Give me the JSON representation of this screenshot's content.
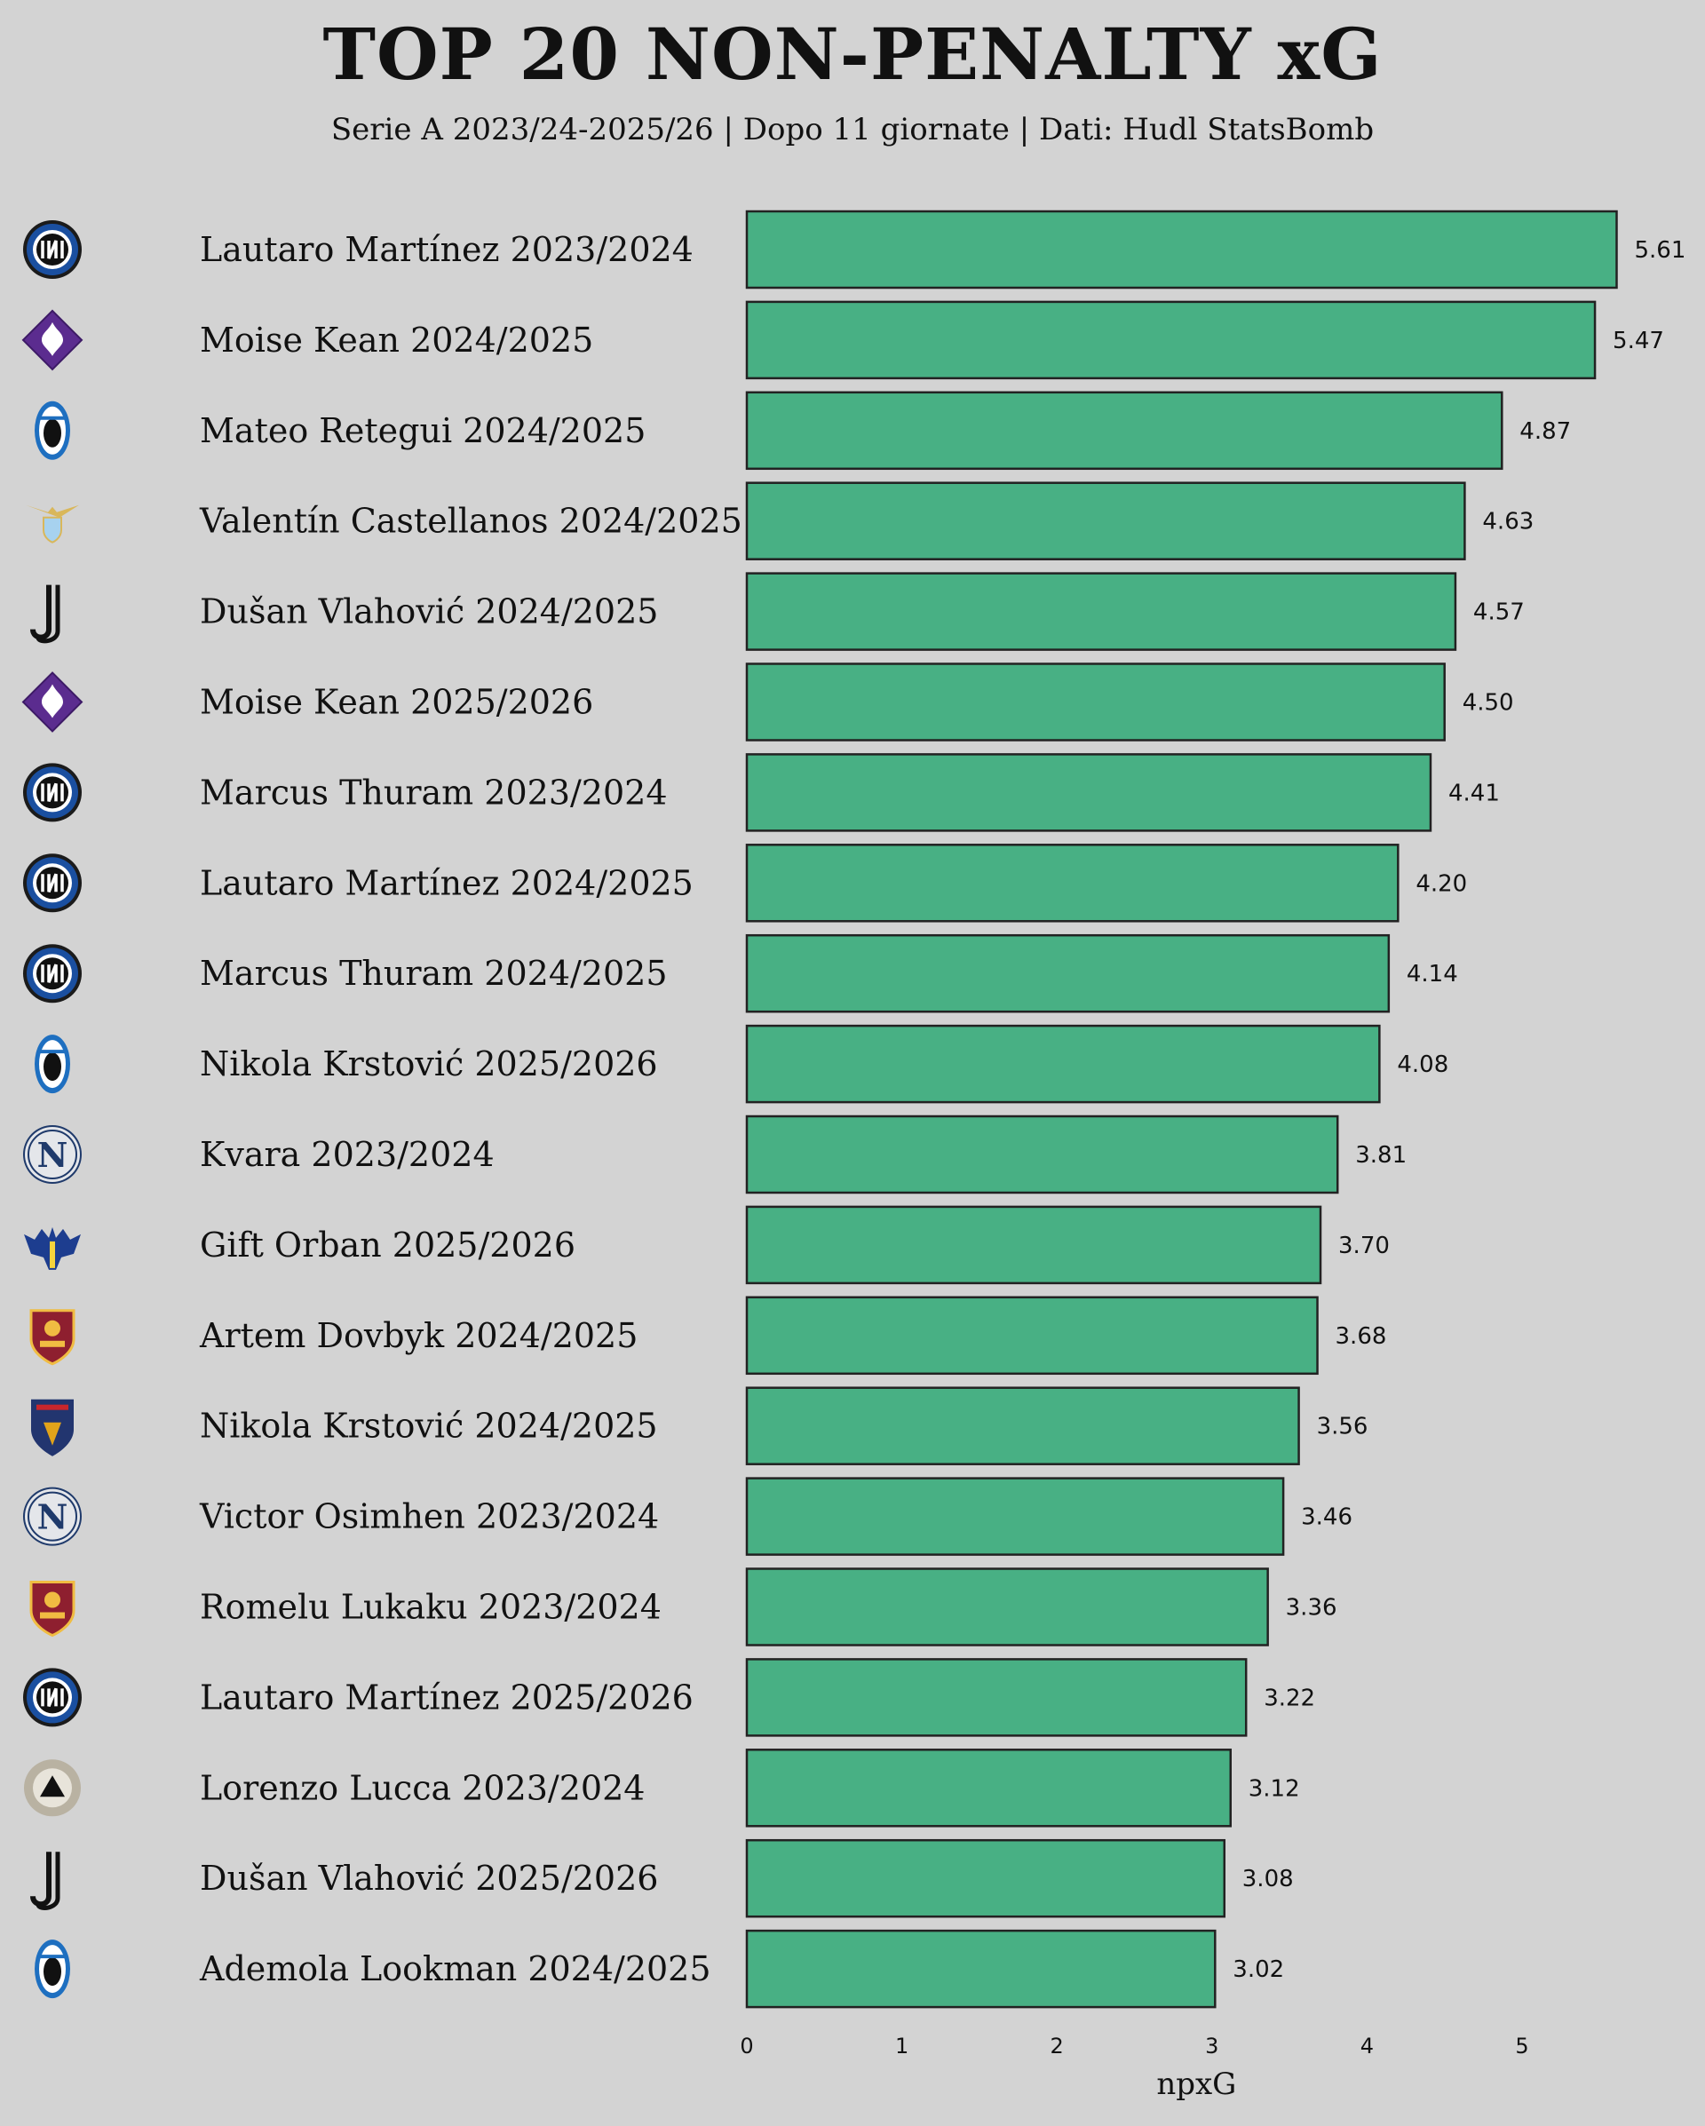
{
  "chart_data": {
    "type": "bar",
    "orientation": "horizontal",
    "title": "TOP 20 NON-PENALTY xG",
    "subtitle": "Serie A 2023/24-2025/26 | Dopo 11 giornate | Dati: Hudl StatsBomb",
    "xlabel": "npxG",
    "ylabel": "",
    "xlim": [
      0,
      5.8
    ],
    "xticks": [
      0,
      1,
      2,
      3,
      4,
      5
    ],
    "bar_color": "#48b084",
    "categories": [
      "Lautaro Martínez 2023/2024",
      "Moise Kean 2024/2025",
      "Mateo Retegui 2024/2025",
      "Valentín Castellanos 2024/2025",
      "Dušan Vlahović 2024/2025",
      "Moise Kean 2025/2026",
      "Marcus Thuram 2023/2024",
      "Lautaro Martínez 2024/2025",
      "Marcus Thuram 2024/2025",
      "Nikola Krstović 2025/2026",
      "Kvara 2023/2024",
      "Gift Orban 2025/2026",
      "Artem Dovbyk 2024/2025",
      "Nikola Krstović 2024/2025",
      "Victor Osimhen 2023/2024",
      "Romelu Lukaku 2023/2024",
      "Lautaro Martínez 2025/2026",
      "Lorenzo Lucca 2023/2024",
      "Dušan Vlahović 2025/2026",
      "Ademola Lookman 2024/2025"
    ],
    "values": [
      5.61,
      5.47,
      4.87,
      4.63,
      4.57,
      4.5,
      4.41,
      4.2,
      4.14,
      4.08,
      3.81,
      3.7,
      3.68,
      3.56,
      3.46,
      3.36,
      3.22,
      3.12,
      3.08,
      3.02
    ],
    "value_labels": [
      "5.61",
      "5.47",
      "4.87",
      "4.63",
      "4.57",
      "4.50",
      "4.41",
      "4.20",
      "4.14",
      "4.08",
      "3.81",
      "3.70",
      "3.68",
      "3.56",
      "3.46",
      "3.36",
      "3.22",
      "3.12",
      "3.08",
      "3.02"
    ],
    "team_logos": [
      "inter",
      "fiorentina",
      "atalanta",
      "lazio",
      "juventus",
      "fiorentina",
      "inter",
      "inter",
      "inter",
      "atalanta",
      "napoli",
      "verona",
      "roma",
      "lecce",
      "napoli",
      "roma",
      "inter",
      "udinese",
      "juventus",
      "atalanta"
    ]
  }
}
